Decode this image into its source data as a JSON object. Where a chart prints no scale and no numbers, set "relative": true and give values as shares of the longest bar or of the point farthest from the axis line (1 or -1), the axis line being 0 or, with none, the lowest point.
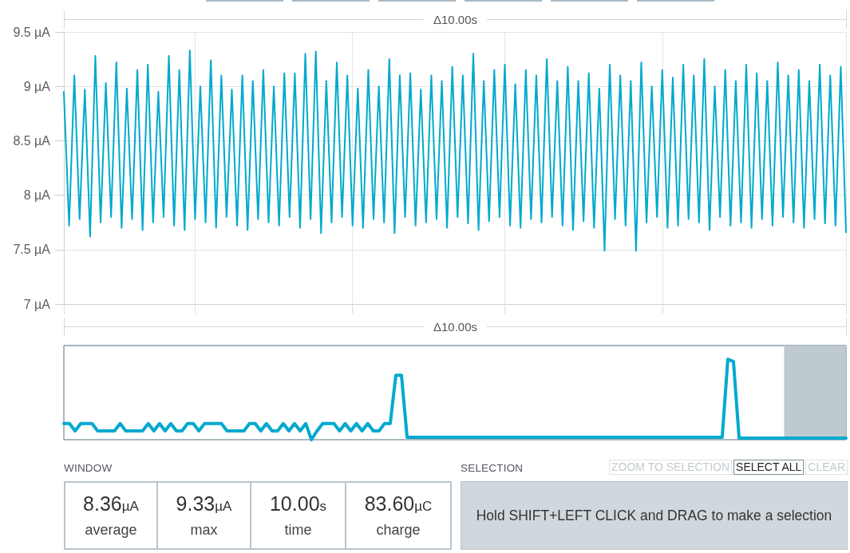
{
  "chart_data": [
    {
      "type": "line",
      "annotations": [
        "Δ10.00s"
      ],
      "categories": [
        null,
        null,
        null,
        null,
        null,
        null,
        null,
        null,
        null,
        null,
        null,
        null,
        null,
        null,
        null,
        null,
        null,
        null,
        null,
        null,
        null,
        null,
        null,
        null,
        null,
        null,
        null,
        null,
        null,
        null,
        null,
        null,
        null,
        null,
        null,
        null,
        null,
        null,
        null,
        null,
        null,
        null,
        null,
        null,
        null,
        null,
        null,
        null,
        null,
        null,
        null,
        null,
        null,
        null,
        null,
        null,
        null,
        null,
        null,
        null,
        null,
        null,
        null,
        null,
        null,
        null,
        null,
        null,
        null,
        null,
        null,
        null,
        null,
        null,
        null,
        null,
        null,
        null,
        null,
        null,
        null,
        null,
        null,
        null,
        null,
        null,
        null,
        null,
        null,
        null,
        null,
        null,
        null,
        null,
        null,
        null,
        null,
        null,
        null,
        null,
        null,
        null,
        null,
        null,
        null,
        null,
        null,
        null,
        null,
        null,
        null,
        null,
        null,
        null,
        null,
        null,
        null,
        null,
        null,
        null,
        null,
        null,
        null,
        null,
        null,
        null,
        null,
        null,
        null,
        null,
        null,
        null,
        null,
        null,
        null,
        null,
        null,
        null,
        null,
        null,
        null,
        null,
        null,
        null,
        null,
        null,
        null,
        null,
        null,
        null
      ],
      "color": "#00a9ce",
      "values": [
        8.95,
        7.72,
        9.1,
        7.78,
        8.97,
        7.62,
        9.28,
        7.75,
        9.03,
        7.8,
        9.22,
        7.7,
        8.98,
        7.78,
        9.15,
        7.68,
        9.2,
        7.75,
        8.95,
        7.8,
        9.28,
        7.72,
        9.15,
        7.68,
        9.33,
        7.78,
        9.0,
        7.75,
        9.24,
        7.7,
        9.1,
        7.8,
        8.97,
        7.72,
        9.1,
        7.68,
        9.05,
        7.78,
        9.15,
        7.75,
        9.0,
        7.72,
        9.12,
        7.8,
        9.12,
        7.7,
        9.3,
        7.78,
        9.32,
        7.65,
        9.05,
        7.75,
        9.22,
        7.8,
        9.1,
        7.72,
        8.98,
        7.7,
        9.15,
        7.78,
        9.0,
        7.75,
        9.25,
        7.65,
        9.1,
        7.8,
        9.12,
        7.72,
        8.97,
        7.75,
        9.1,
        7.78,
        9.05,
        7.7,
        9.18,
        7.8,
        9.1,
        7.74,
        9.3,
        7.68,
        9.05,
        7.76,
        9.15,
        7.8,
        9.2,
        7.72,
        9.02,
        7.7,
        9.15,
        7.78,
        9.1,
        7.75,
        9.25,
        7.8,
        9.05,
        7.72,
        9.18,
        7.68,
        9.05,
        7.76,
        9.12,
        7.7,
        8.98,
        7.49,
        9.2,
        7.78,
        9.1,
        7.72,
        9.05,
        7.49,
        9.22,
        7.75,
        9.0,
        7.8,
        9.15,
        7.7,
        9.08,
        7.72,
        9.2,
        7.78,
        9.1,
        7.75,
        9.25,
        7.68,
        9.0,
        7.8,
        9.15,
        7.72,
        9.05,
        7.75,
        9.2,
        7.7,
        9.12,
        7.78,
        9.05,
        7.72,
        9.22,
        7.8,
        9.1,
        7.75,
        9.15,
        7.7,
        9.05,
        7.78,
        9.2,
        7.74,
        9.1,
        7.72,
        9.18,
        7.66
      ],
      "ylim": [
        7,
        9.5
      ],
      "yticks": [
        {
          "value": 7,
          "label": "7 µA"
        },
        {
          "value": 7.5,
          "label": "7.5 µA"
        },
        {
          "value": 8,
          "label": "8 µA"
        },
        {
          "value": 8.5,
          "label": "8.5 µA"
        },
        {
          "value": 9,
          "label": "9 µA"
        },
        {
          "value": 9.5,
          "label": "9.5 µA"
        }
      ],
      "grid": true
    },
    {
      "type": "line",
      "relative": true,
      "annotations": [
        "Δ10.00s"
      ],
      "categories": [
        null,
        null,
        null,
        null,
        null,
        null,
        null,
        null,
        null,
        null,
        null,
        null,
        null,
        null,
        null,
        null,
        null,
        null,
        null,
        null,
        null,
        null,
        null,
        null,
        null,
        null,
        null,
        null,
        null,
        null,
        null,
        null,
        null,
        null,
        null,
        null,
        null,
        null,
        null,
        null,
        null,
        null,
        null,
        null,
        null,
        null,
        null,
        null,
        null,
        null,
        null,
        null,
        null,
        null,
        null,
        null,
        null,
        null,
        null,
        null,
        null,
        null,
        null,
        null,
        null,
        null,
        null,
        null,
        null,
        null,
        null,
        null,
        null,
        null,
        null,
        null,
        null,
        null,
        null,
        null,
        null,
        null,
        null,
        null,
        null,
        null,
        null,
        null,
        null,
        null,
        null,
        null,
        null,
        null,
        null,
        null,
        null,
        null,
        null,
        null,
        null,
        null,
        null,
        null,
        null,
        null,
        null,
        null,
        null,
        null,
        null,
        null,
        null,
        null,
        null,
        null,
        null,
        null,
        null,
        null,
        null,
        null,
        null,
        null,
        null,
        null,
        null,
        null,
        null,
        null,
        null,
        null,
        null,
        null,
        null,
        null,
        null,
        null,
        null,
        null
      ],
      "color": "#00a9ce",
      "values": [
        0.2,
        0.2,
        0.11,
        0.2,
        0.2,
        0.2,
        0.11,
        0.11,
        0.11,
        0.11,
        0.2,
        0.11,
        0.11,
        0.11,
        0.11,
        0.2,
        0.11,
        0.2,
        0.11,
        0.2,
        0.11,
        0.11,
        0.2,
        0.2,
        0.11,
        0.2,
        0.2,
        0.2,
        0.2,
        0.11,
        0.11,
        0.11,
        0.11,
        0.2,
        0.2,
        0.11,
        0.2,
        0.11,
        0.11,
        0.2,
        0.11,
        0.2,
        0.11,
        0.2,
        0,
        0.11,
        0.2,
        0.2,
        0.2,
        0.11,
        0.2,
        0.11,
        0.2,
        0.11,
        0.2,
        0.11,
        0.11,
        0.2,
        0.2,
        0.8,
        0.8,
        0.03,
        0.03,
        0.03,
        0.03,
        0.03,
        0.03,
        0.03,
        0.03,
        0.03,
        0.03,
        0.03,
        0.03,
        0.03,
        0.03,
        0.03,
        0.03,
        0.03,
        0.03,
        0.03,
        0.03,
        0.03,
        0.03,
        0.03,
        0.03,
        0.03,
        0.03,
        0.03,
        0.03,
        0.03,
        0.03,
        0.03,
        0.03,
        0.03,
        0.03,
        0.03,
        0.03,
        0.03,
        0.03,
        0.03,
        0.03,
        0.03,
        0.03,
        0.03,
        0.03,
        0.03,
        0.03,
        0.03,
        0.03,
        0.03,
        0.03,
        0.03,
        0.03,
        0.03,
        0.03,
        0.03,
        0.03,
        0.03,
        1,
        0.97,
        0.02,
        0.02,
        0.02,
        0.02,
        0.02,
        0.02,
        0.02,
        0.02,
        0.02,
        0.02,
        0.02,
        0.02,
        0.02,
        0.02,
        0.02,
        0.02,
        0.02,
        0.02,
        0.02,
        0.02
      ]
    },
    {
      "type": "other",
      "title": "WINDOW",
      "annotations": [
        "8.36µA",
        "average",
        "9.33µA",
        "max",
        "10.00s",
        "time",
        "83.60µC",
        "charge"
      ]
    },
    {
      "type": "other",
      "title": "SELECTION",
      "annotations": [
        "ZOOM TO SELECTION",
        "SELECT ALL",
        "CLEAR",
        "Hold SHIFT+LEFT CLICK and DRAG to make a selection"
      ]
    }
  ]
}
